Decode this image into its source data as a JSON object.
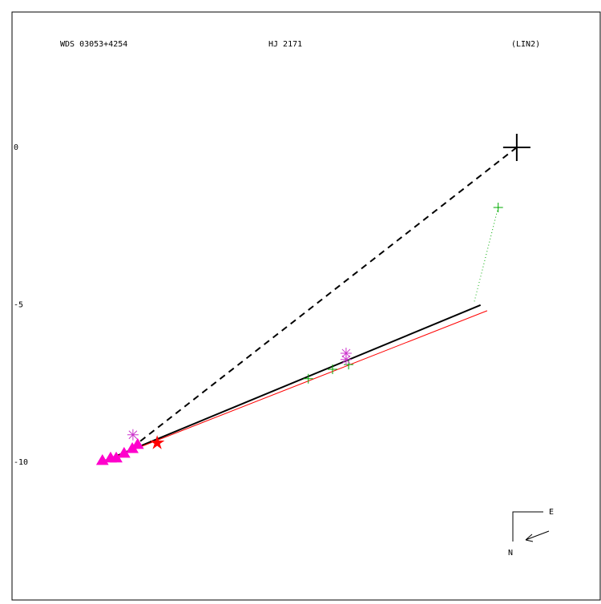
{
  "chart_data": {
    "type": "scatter",
    "title": "WDS 03053+4254",
    "subtitle": "HJ 2171",
    "annotation": "(LIN2)",
    "xlim": [
      -16.03,
      2.65
    ],
    "ylim": [
      -14.38,
      4.3
    ],
    "yticks": [
      0,
      -5,
      -10
    ],
    "compass": {
      "east": "E",
      "north": "N"
    },
    "series": [
      {
        "marker": "line-solid",
        "color": "#000000",
        "x": [
          -13.31,
          -1.15
        ],
        "values": [
          -10.05,
          -5.01
        ]
      },
      {
        "marker": "line-solid-thin",
        "color": "#ff0000",
        "x": [
          -13.31,
          -0.94
        ],
        "values": [
          -10.05,
          -5.19
        ]
      },
      {
        "marker": "line-dashed",
        "color": "#000000",
        "x": [
          0,
          -12.09
        ],
        "values": [
          0,
          -9.44
        ]
      },
      {
        "marker": "line-dotted",
        "color": "#00aa00",
        "x": [
          -0.59,
          -1.35
        ],
        "values": [
          -1.91,
          -4.91
        ]
      },
      {
        "marker": "big-plus",
        "color": "#000000",
        "x": [
          0
        ],
        "values": [
          0
        ]
      },
      {
        "marker": "plus",
        "color": "#00aa00",
        "x": [
          -0.59,
          -6.62,
          -5.85,
          -5.34
        ],
        "values": [
          -1.91,
          -7.35,
          -7.05,
          -6.9
        ]
      },
      {
        "marker": "asterisk",
        "color": "#cc33cc",
        "x": [
          -12.19,
          -5.42,
          -5.42
        ],
        "values": [
          -9.13,
          -6.54,
          -6.74
        ]
      },
      {
        "marker": "star",
        "color": "#ff0000",
        "x": [
          -11.42
        ],
        "values": [
          -9.39
        ]
      },
      {
        "marker": "triangle",
        "color": "#ff00cc",
        "x": [
          -13.16,
          -12.9,
          -12.72,
          -12.47,
          -12.21,
          -12.04
        ],
        "values": [
          -9.95,
          -9.87,
          -9.87,
          -9.72,
          -9.57,
          -9.44
        ]
      }
    ]
  }
}
